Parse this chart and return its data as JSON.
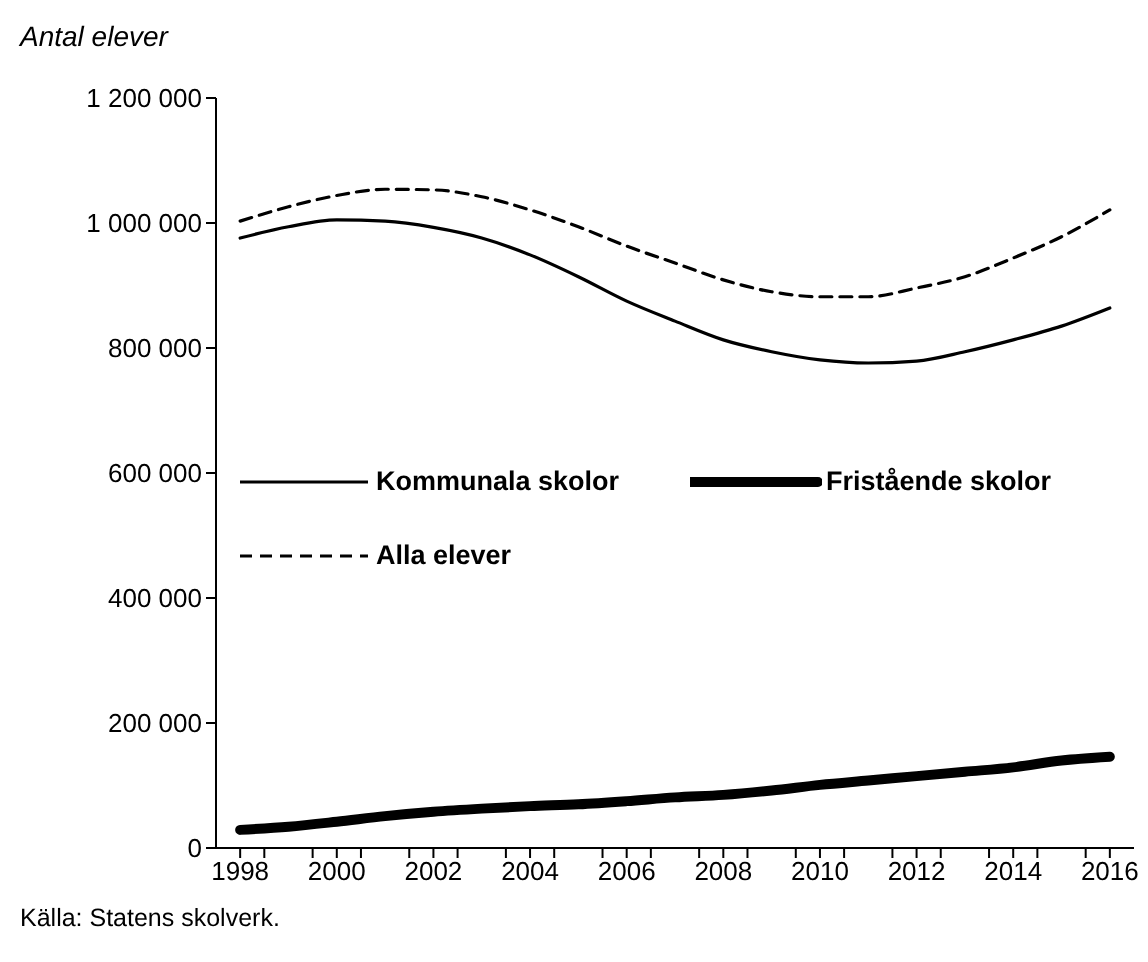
{
  "chart_data": {
    "type": "line",
    "ylabel": "Antal elever",
    "annotations": [
      "Källa: Statens skolverk."
    ],
    "x": [
      1998,
      1999,
      2000,
      2001,
      2002,
      2003,
      2004,
      2005,
      2006,
      2007,
      2008,
      2009,
      2010,
      2011,
      2012,
      2013,
      2014,
      2015,
      2016
    ],
    "series": [
      {
        "name": "Kommunala skolor",
        "color": "#000000",
        "line_style": "solid",
        "values": [
          976000,
          994000,
          1005000,
          1003000,
          993000,
          976000,
          949000,
          914000,
          875000,
          843000,
          813000,
          794000,
          781000,
          776000,
          779000,
          794000,
          813000,
          835000,
          864000
        ]
      },
      {
        "name": "Fristående skolor",
        "color": "#000000",
        "line_style": "solid",
        "values": [
          29000,
          34000,
          42000,
          51000,
          58000,
          63000,
          67000,
          70000,
          75000,
          81000,
          85000,
          92000,
          101000,
          108000,
          115000,
          122000,
          129000,
          140000,
          146000
        ]
      },
      {
        "name": "Alla elever",
        "color": "#000000",
        "line_style": "dashed",
        "values": [
          1003000,
          1026000,
          1044000,
          1054000,
          1053000,
          1042000,
          1021000,
          994000,
          963000,
          936000,
          909000,
          890000,
          882000,
          882000,
          896000,
          914000,
          944000,
          978000,
          1021000
        ]
      }
    ],
    "xlim": [
      1997.5,
      2016.5
    ],
    "xticks": [
      1998,
      {
        "value": 1998.5,
        "label": null
      },
      {
        "value": 1999.5,
        "label": null
      },
      2000,
      {
        "value": 2000.5,
        "label": null
      },
      {
        "value": 2001.5,
        "label": null
      },
      2002,
      {
        "value": 2002.5,
        "label": null
      },
      {
        "value": 2003.5,
        "label": null
      },
      2004,
      {
        "value": 2004.5,
        "label": null
      },
      {
        "value": 2005.5,
        "label": null
      },
      2006,
      {
        "value": 2006.5,
        "label": null
      },
      {
        "value": 2007.5,
        "label": null
      },
      2008,
      {
        "value": 2008.5,
        "label": null
      },
      {
        "value": 2009.5,
        "label": null
      },
      2010,
      {
        "value": 2010.5,
        "label": null
      },
      {
        "value": 2011.5,
        "label": null
      },
      2012,
      {
        "value": 2012.5,
        "label": null
      },
      {
        "value": 2013.5,
        "label": null
      },
      2014,
      {
        "value": 2014.5,
        "label": null
      },
      {
        "value": 2015.5,
        "label": null
      },
      2016
    ],
    "ylim": [
      0,
      1200000
    ],
    "yticks": [
      0,
      200000,
      400000,
      600000,
      800000,
      1000000,
      1200000
    ],
    "grid": false,
    "legend": "left",
    "marker": "none"
  }
}
